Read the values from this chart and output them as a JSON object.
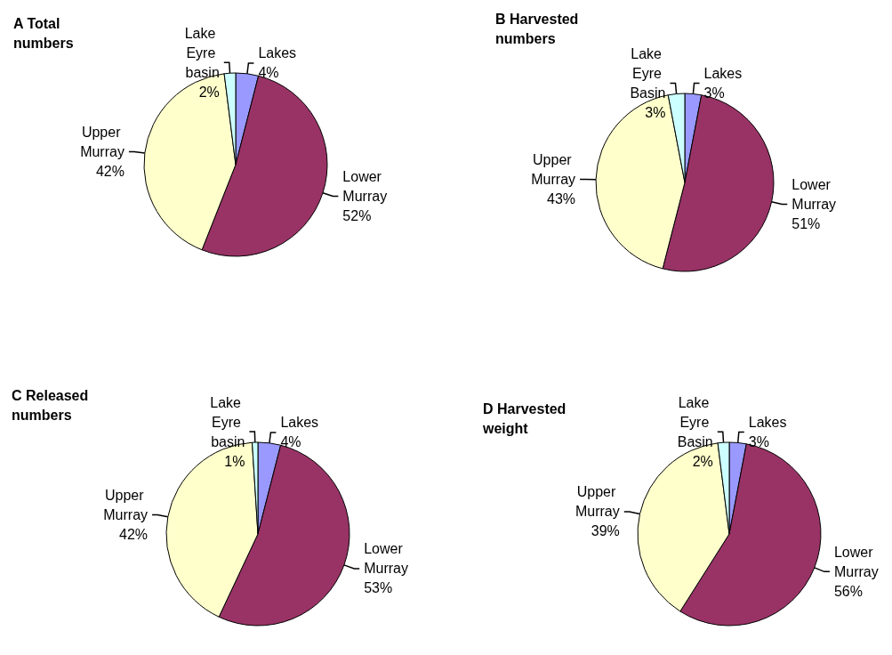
{
  "chart_data": [
    {
      "type": "pie",
      "title": "A Total numbers",
      "categories": [
        "Lakes",
        "Lower Murray",
        "Upper Murray",
        "Lake Eyre basin"
      ],
      "values": [
        4,
        52,
        42,
        2
      ],
      "value_labels": [
        "4%",
        "52%",
        "42%",
        "2%"
      ],
      "colors": [
        "#9999ff",
        "#993366",
        "#ffffcc",
        "#ccffff"
      ],
      "legend": false
    },
    {
      "type": "pie",
      "title": "B Harvested numbers",
      "categories": [
        "Lakes",
        "Lower Murray",
        "Upper Murray",
        "Lake Eyre Basin"
      ],
      "values": [
        3,
        51,
        43,
        3
      ],
      "value_labels": [
        "3%",
        "51%",
        "43%",
        "3%"
      ],
      "colors": [
        "#9999ff",
        "#993366",
        "#ffffcc",
        "#ccffff"
      ],
      "legend": false
    },
    {
      "type": "pie",
      "title": "C Released numbers",
      "categories": [
        "Lakes",
        "Lower Murray",
        "Upper Murray",
        "Lake Eyre basin"
      ],
      "values": [
        4,
        53,
        42,
        1
      ],
      "value_labels": [
        "4%",
        "53%",
        "42%",
        "1%"
      ],
      "colors": [
        "#9999ff",
        "#993366",
        "#ffffcc",
        "#ccffff"
      ],
      "legend": false
    },
    {
      "type": "pie",
      "title": "D Harvested weight",
      "categories": [
        "Lakes",
        "Lower Murray",
        "Upper Murray",
        "Lake Eyre Basin"
      ],
      "values": [
        3,
        56,
        39,
        2
      ],
      "value_labels": [
        "3%",
        "56%",
        "39%",
        "2%"
      ],
      "colors": [
        "#9999ff",
        "#993366",
        "#ffffcc",
        "#ccffff"
      ],
      "legend": false
    }
  ]
}
